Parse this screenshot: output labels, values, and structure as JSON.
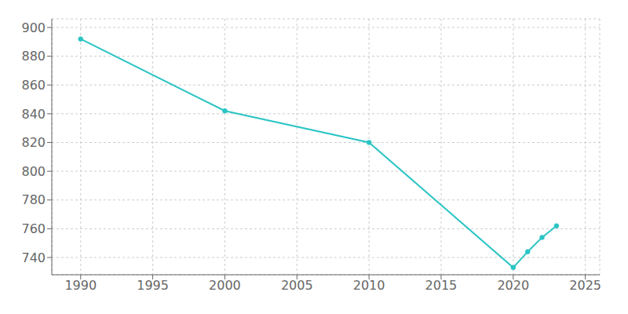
{
  "chart_data": {
    "type": "line",
    "x": [
      1990,
      2000,
      2010,
      2020,
      2021,
      2022,
      2023
    ],
    "values": [
      892,
      842,
      820,
      733,
      744,
      754,
      762
    ],
    "color": "#2ac4c4",
    "marker": "o",
    "xlim": [
      1988,
      2026
    ],
    "xticks": [
      1990,
      1995,
      2000,
      2005,
      2010,
      2015,
      2020,
      2025
    ],
    "ylim": [
      728,
      906
    ],
    "yticks": [
      740,
      760,
      780,
      800,
      820,
      840,
      860,
      880,
      900
    ],
    "grid": true
  }
}
